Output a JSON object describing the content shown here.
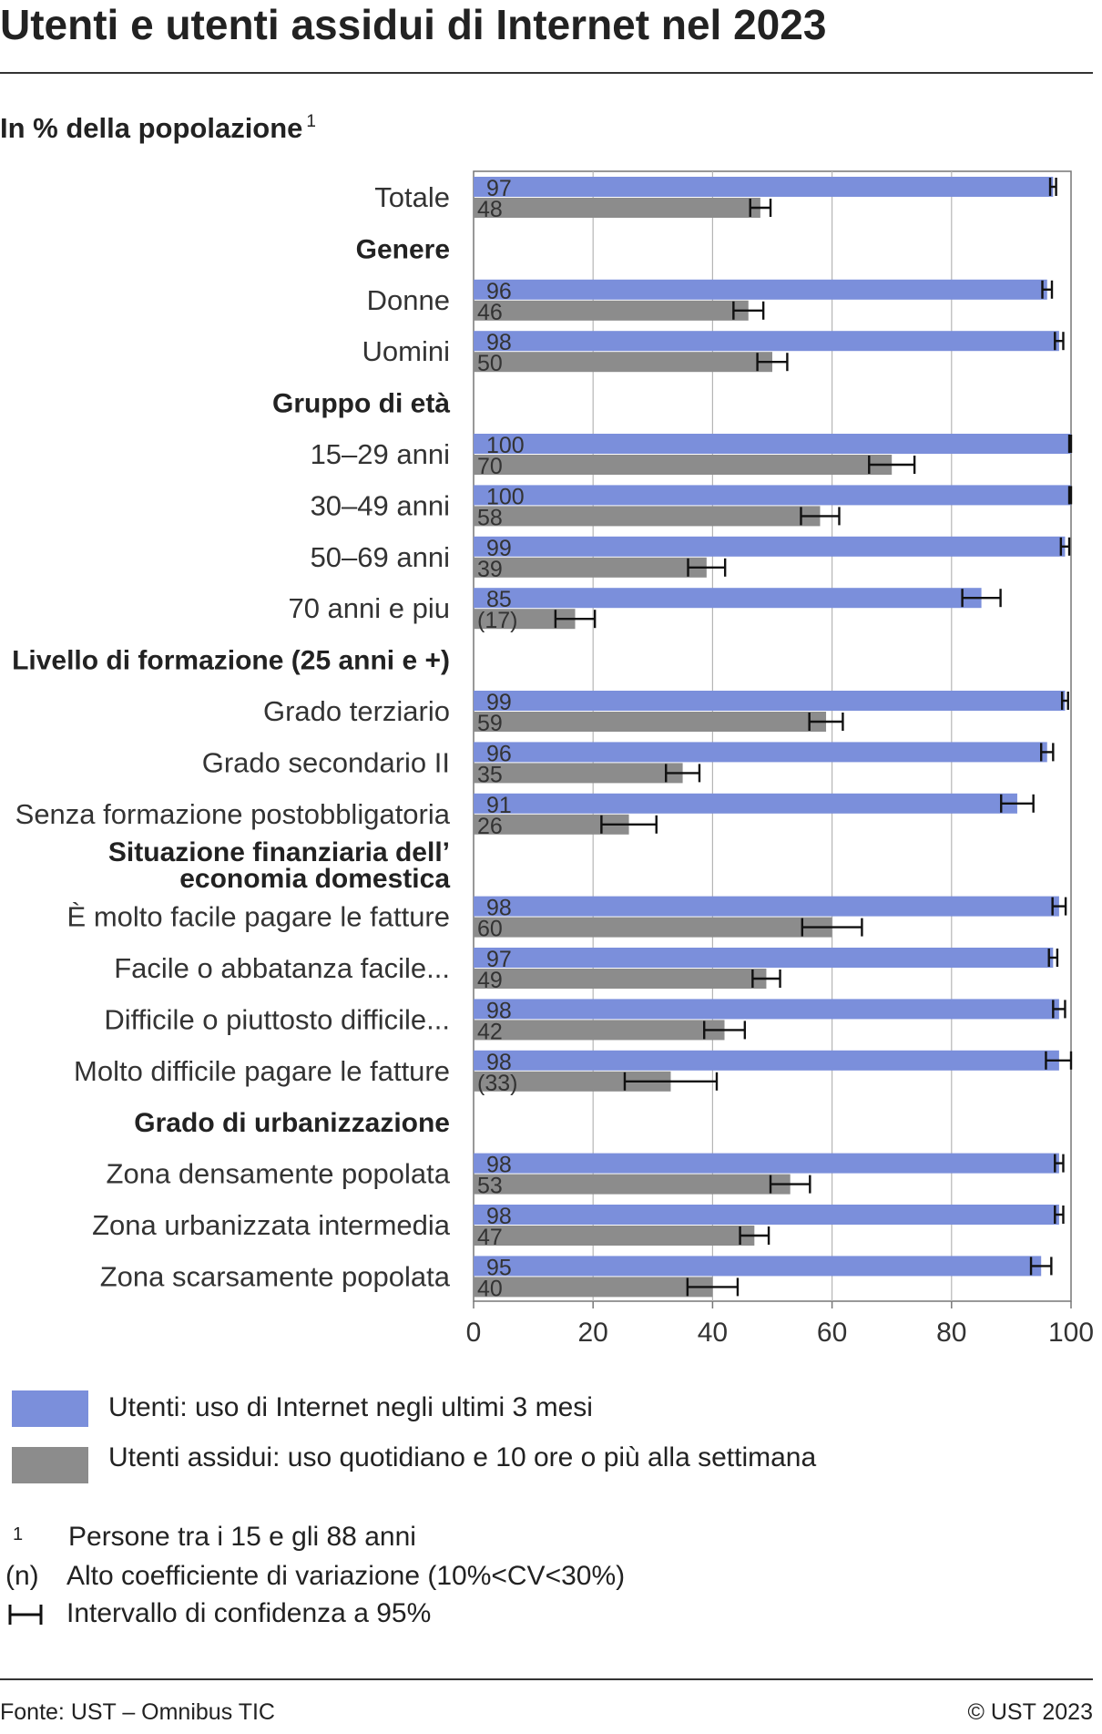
{
  "chart_data": {
    "type": "bar",
    "orientation": "horizontal",
    "title": "Utenti e utenti assidui di Internet nel 2023",
    "subtitle": "In % della popolazione",
    "subtitle_note": "1",
    "xlim": [
      0,
      100
    ],
    "x_ticks": [
      "0",
      "20",
      "40",
      "60",
      "80",
      "100"
    ],
    "grid": true,
    "legend_position": "bottom",
    "series": [
      {
        "name": "Utenti: uso di Internet negli ultimi 3 mesi",
        "color": "#7b8fdb"
      },
      {
        "name": "Utenti assidui: uso quotidiano e 10 ore o più alla settimana",
        "color": "#8c8c8c"
      }
    ],
    "rows": [
      {
        "label": "Totale",
        "heading": false,
        "users": 97,
        "users_label": "97",
        "users_ci": [
          96.5,
          97.5
        ],
        "regular": 48,
        "regular_label": "48",
        "regular_ci": [
          46.3,
          49.7
        ]
      },
      {
        "label": "Genere",
        "heading": true
      },
      {
        "label": "Donne",
        "heading": false,
        "users": 96,
        "users_label": "96",
        "users_ci": [
          95.2,
          96.8
        ],
        "regular": 46,
        "regular_label": "46",
        "regular_ci": [
          43.5,
          48.5
        ]
      },
      {
        "label": "Uomini",
        "heading": false,
        "users": 98,
        "users_label": "98",
        "users_ci": [
          97.3,
          98.7
        ],
        "regular": 50,
        "regular_label": "50",
        "regular_ci": [
          47.5,
          52.5
        ]
      },
      {
        "label": "Gruppo di età",
        "heading": true
      },
      {
        "label": "15–29 anni",
        "heading": false,
        "users": 100,
        "users_label": "100",
        "users_ci": [
          99.7,
          100
        ],
        "regular": 70,
        "regular_label": "70",
        "regular_ci": [
          66.2,
          73.8
        ]
      },
      {
        "label": "30–49 anni",
        "heading": false,
        "users": 100,
        "users_label": "100",
        "users_ci": [
          99.7,
          100
        ],
        "regular": 58,
        "regular_label": "58",
        "regular_ci": [
          54.8,
          61.2
        ]
      },
      {
        "label": "50–69 anni",
        "heading": false,
        "users": 99,
        "users_label": "99",
        "users_ci": [
          98.3,
          99.7
        ],
        "regular": 39,
        "regular_label": "39",
        "regular_ci": [
          35.9,
          42.1
        ]
      },
      {
        "label": "70 anni e piu",
        "heading": false,
        "users": 85,
        "users_label": "85",
        "users_ci": [
          81.8,
          88.2
        ],
        "regular": 17,
        "regular_label": "(17)",
        "regular_ci": [
          13.7,
          20.3
        ]
      },
      {
        "label": "Livello di formazione (25 anni e +)",
        "heading": true
      },
      {
        "label": "Grado terziario",
        "heading": false,
        "users": 99,
        "users_label": "99",
        "users_ci": [
          98.5,
          99.5
        ],
        "regular": 59,
        "regular_label": "59",
        "regular_ci": [
          56.2,
          61.8
        ]
      },
      {
        "label": "Grado secondario II",
        "heading": false,
        "users": 96,
        "users_label": "96",
        "users_ci": [
          95,
          97
        ],
        "regular": 35,
        "regular_label": "35",
        "regular_ci": [
          32.2,
          37.8
        ]
      },
      {
        "label": "Senza formazione postobbligatoria",
        "heading": false,
        "users": 91,
        "users_label": "91",
        "users_ci": [
          88.3,
          93.7
        ],
        "regular": 26,
        "regular_label": "26",
        "regular_ci": [
          21.4,
          30.6
        ]
      },
      {
        "label": "Situazione finanziaria dell’ economia domestica",
        "label_lines": [
          "Situazione finanziaria dell’",
          "economia domestica"
        ],
        "heading": true
      },
      {
        "label": "È molto facile pagare le fatture",
        "heading": false,
        "users": 98,
        "users_label": "98",
        "users_ci": [
          96.9,
          99.1
        ],
        "regular": 60,
        "regular_label": "60",
        "regular_ci": [
          55,
          65
        ]
      },
      {
        "label": "Facile o abbatanza facile...",
        "heading": false,
        "users": 97,
        "users_label": "97",
        "users_ci": [
          96.3,
          97.7
        ],
        "regular": 49,
        "regular_label": "49",
        "regular_ci": [
          46.7,
          51.3
        ]
      },
      {
        "label": "Difficile o piuttosto difficile...",
        "heading": false,
        "users": 98,
        "users_label": "98",
        "users_ci": [
          97,
          99
        ],
        "regular": 42,
        "regular_label": "42",
        "regular_ci": [
          38.6,
          45.4
        ]
      },
      {
        "label": "Molto difficile pagare le fatture",
        "heading": false,
        "users": 98,
        "users_label": "98",
        "users_ci": [
          95.8,
          100
        ],
        "regular": 33,
        "regular_label": "(33)",
        "regular_ci": [
          25.3,
          40.7
        ]
      },
      {
        "label": "Grado di urbanizzazione",
        "heading": true
      },
      {
        "label": "Zona densamente popolata",
        "heading": false,
        "users": 98,
        "users_label": "98",
        "users_ci": [
          97.3,
          98.7
        ],
        "regular": 53,
        "regular_label": "53",
        "regular_ci": [
          49.7,
          56.3
        ]
      },
      {
        "label": "Zona urbanizzata intermedia",
        "heading": false,
        "users": 98,
        "users_label": "98",
        "users_ci": [
          97.3,
          98.7
        ],
        "regular": 47,
        "regular_label": "47",
        "regular_ci": [
          44.6,
          49.4
        ]
      },
      {
        "label": "Zona scarsamente popolata",
        "heading": false,
        "users": 95,
        "users_label": "95",
        "users_ci": [
          93.3,
          96.7
        ],
        "regular": 40,
        "regular_label": "40",
        "regular_ci": [
          35.8,
          44.2
        ]
      }
    ]
  },
  "legend": {
    "users_label": "Utenti: uso di Internet negli ultimi 3 mesi",
    "regular_label": "Utenti assidui: uso quotidiano e 10 ore o più alla settimana",
    "users_color": "#7b8fdb",
    "regular_color": "#8c8c8c"
  },
  "notes": {
    "note1_mark": "1",
    "note1_text": "Persone tra i 15 e gli 88 anni",
    "note2_mark": "(n)",
    "note2_text": "Alto coefficiente di variazione (10%<CV<30%)",
    "note3_text": "Intervallo di confidenza a 95%"
  },
  "footer": {
    "source": "Fonte: UST – Omnibus TIC",
    "copyright": "© UST 2023"
  }
}
